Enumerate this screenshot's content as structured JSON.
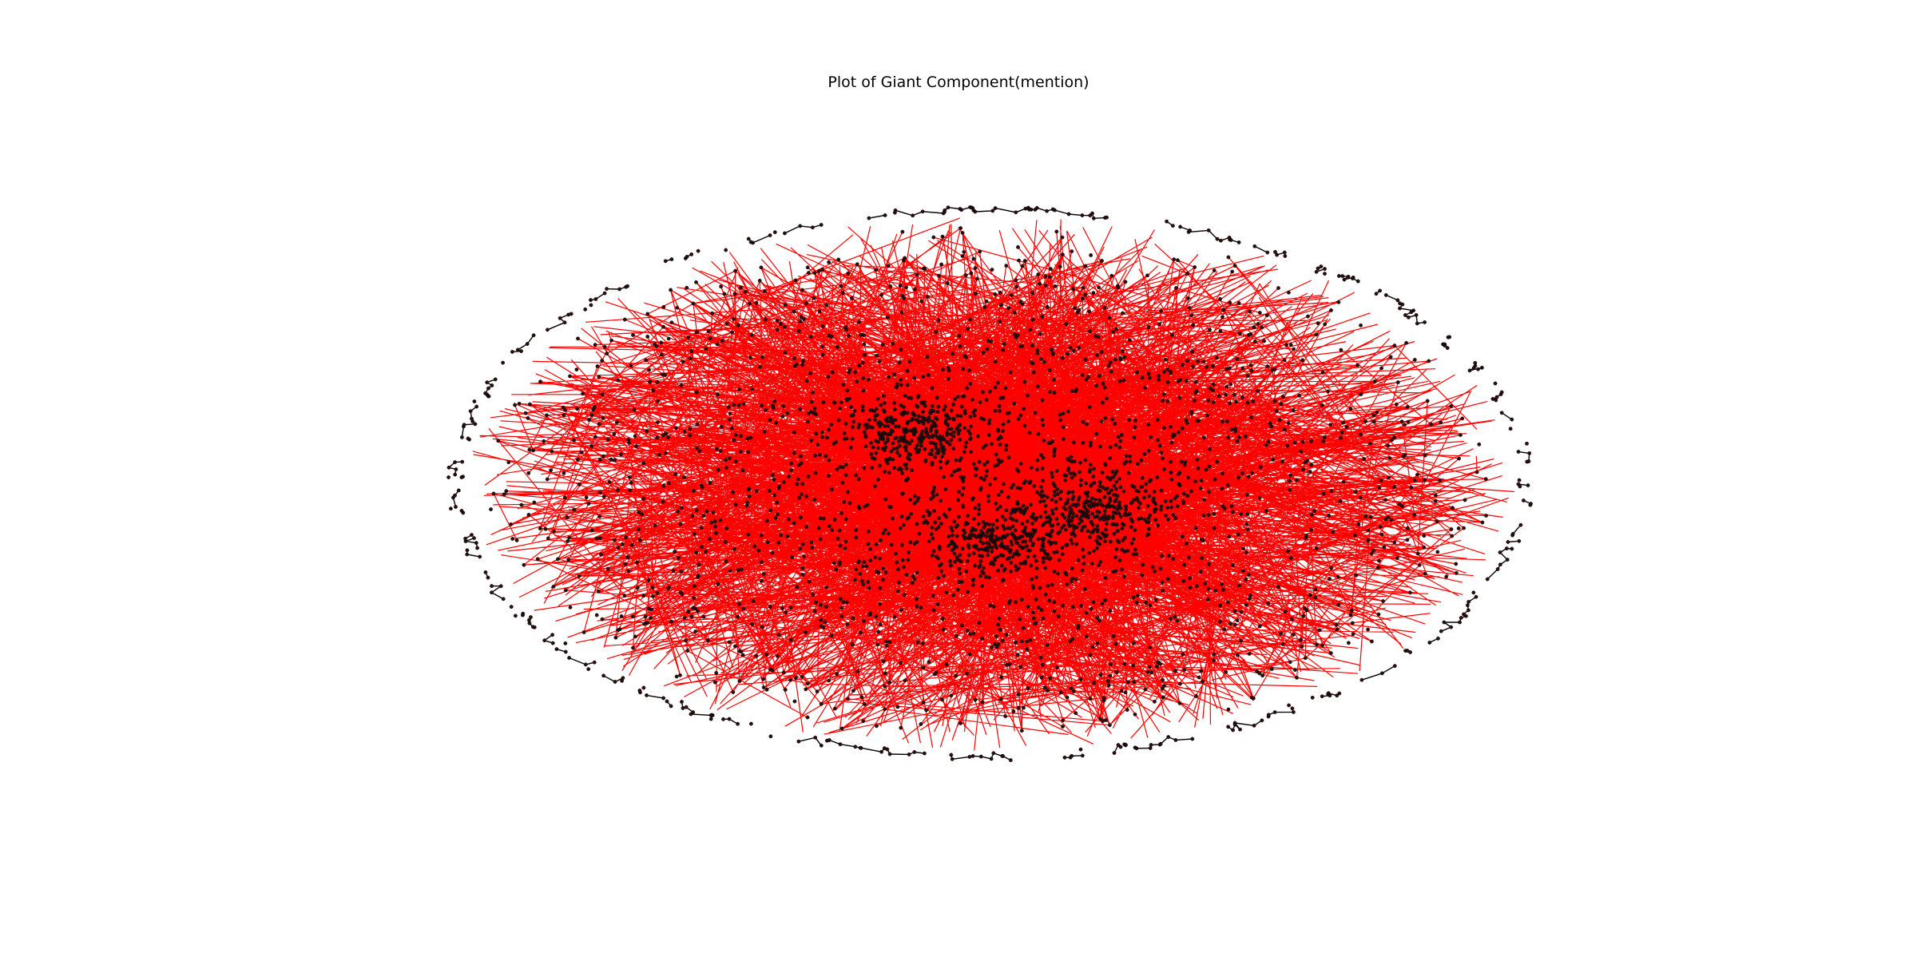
{
  "figure": {
    "title": "Plot of Giant Component(mention)"
  },
  "graph": {
    "layout": "spring",
    "background_color": "#ffffff",
    "edge_color": "#ff0000",
    "outer_edge_color": "#000000",
    "node_color": "#2b0f0f",
    "node_edge_color": "#000000",
    "dense_clusters": 3
  }
}
